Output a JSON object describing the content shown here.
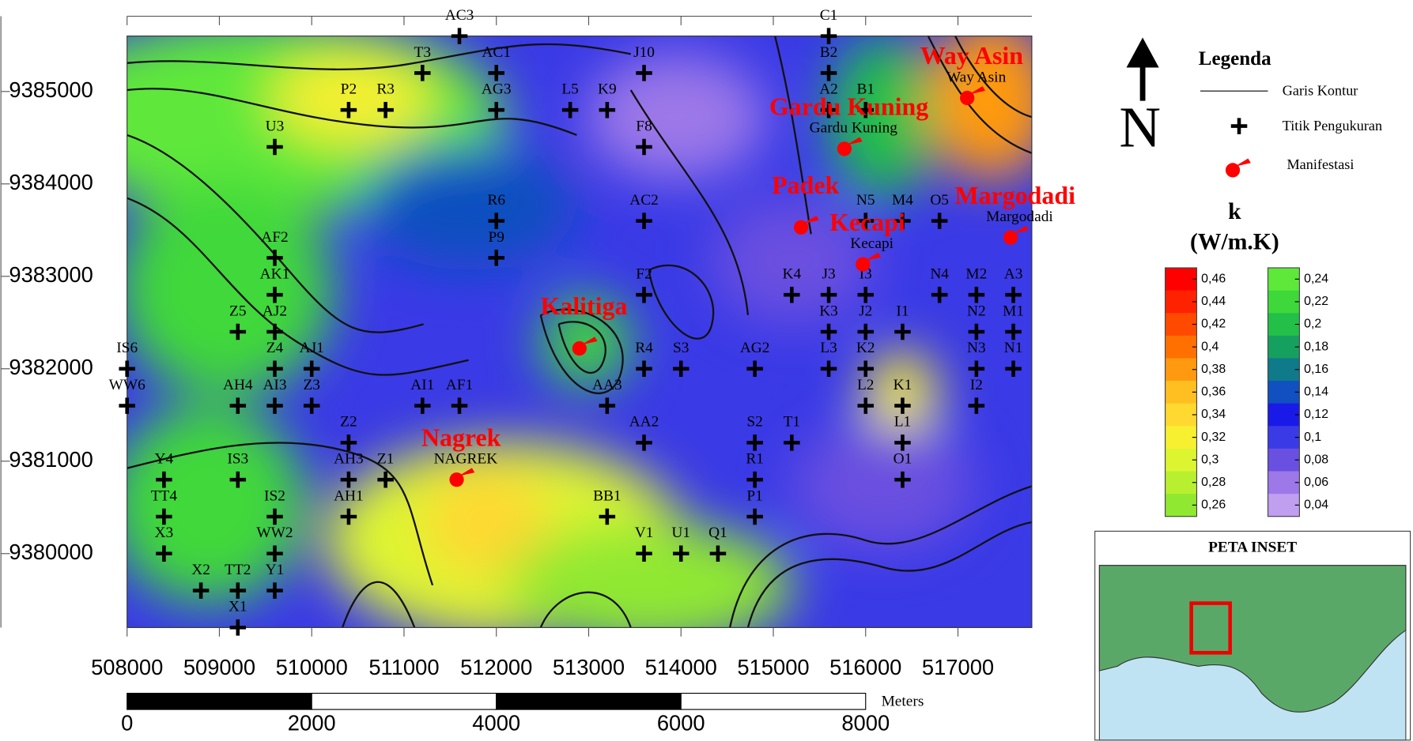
{
  "map": {
    "xlim": [
      508000,
      517800
    ],
    "ylim": [
      9379200,
      9385600
    ],
    "xticks": [
      508000,
      509000,
      510000,
      511000,
      512000,
      513000,
      514000,
      515000,
      516000,
      517000
    ],
    "yticks": [
      9380000,
      9381000,
      9382000,
      9383000,
      9384000,
      9385000
    ],
    "points": [
      {
        "label": "AC3",
        "x": 511600,
        "y": 9385600
      },
      {
        "label": "C1",
        "x": 515600,
        "y": 9385600
      },
      {
        "label": "T3",
        "x": 511200,
        "y": 9385200
      },
      {
        "label": "AC1",
        "x": 512000,
        "y": 9385200
      },
      {
        "label": "J10",
        "x": 513600,
        "y": 9385200
      },
      {
        "label": "B2",
        "x": 515600,
        "y": 9385200
      },
      {
        "label": "P2",
        "x": 510400,
        "y": 9384800
      },
      {
        "label": "R3",
        "x": 510800,
        "y": 9384800
      },
      {
        "label": "AG3",
        "x": 512000,
        "y": 9384800
      },
      {
        "label": "L5",
        "x": 512800,
        "y": 9384800
      },
      {
        "label": "K9",
        "x": 513200,
        "y": 9384800
      },
      {
        "label": "A2",
        "x": 515600,
        "y": 9384800
      },
      {
        "label": "B1",
        "x": 516000,
        "y": 9384800
      },
      {
        "label": "U3",
        "x": 509600,
        "y": 9384400
      },
      {
        "label": "F8",
        "x": 513600,
        "y": 9384400
      },
      {
        "label": "R6",
        "x": 512000,
        "y": 9383600
      },
      {
        "label": "AC2",
        "x": 513600,
        "y": 9383600
      },
      {
        "label": "N5",
        "x": 516000,
        "y": 9383600
      },
      {
        "label": "M4",
        "x": 516400,
        "y": 9383600
      },
      {
        "label": "O5",
        "x": 516800,
        "y": 9383600
      },
      {
        "label": "AF2",
        "x": 509600,
        "y": 9383200
      },
      {
        "label": "P9",
        "x": 512000,
        "y": 9383200
      },
      {
        "label": "AK1",
        "x": 509600,
        "y": 9382800
      },
      {
        "label": "F2",
        "x": 513600,
        "y": 9382800
      },
      {
        "label": "K4",
        "x": 515200,
        "y": 9382800
      },
      {
        "label": "J3",
        "x": 515600,
        "y": 9382800
      },
      {
        "label": "I3",
        "x": 516000,
        "y": 9382800
      },
      {
        "label": "N4",
        "x": 516800,
        "y": 9382800
      },
      {
        "label": "M2",
        "x": 517200,
        "y": 9382800
      },
      {
        "label": "A3",
        "x": 517600,
        "y": 9382800
      },
      {
        "label": "Z5",
        "x": 509200,
        "y": 9382400
      },
      {
        "label": "AJ2",
        "x": 509600,
        "y": 9382400
      },
      {
        "label": "K3",
        "x": 515600,
        "y": 9382400
      },
      {
        "label": "J2",
        "x": 516000,
        "y": 9382400
      },
      {
        "label": "I1",
        "x": 516400,
        "y": 9382400
      },
      {
        "label": "N2",
        "x": 517200,
        "y": 9382400
      },
      {
        "label": "M1",
        "x": 517600,
        "y": 9382400
      },
      {
        "label": "IS6",
        "x": 508000,
        "y": 9382000
      },
      {
        "label": "Z4",
        "x": 509600,
        "y": 9382000
      },
      {
        "label": "AJ1",
        "x": 510000,
        "y": 9382000
      },
      {
        "label": "R4",
        "x": 513600,
        "y": 9382000
      },
      {
        "label": "S3",
        "x": 514000,
        "y": 9382000
      },
      {
        "label": "AG2",
        "x": 514800,
        "y": 9382000
      },
      {
        "label": "L3",
        "x": 515600,
        "y": 9382000
      },
      {
        "label": "K2",
        "x": 516000,
        "y": 9382000
      },
      {
        "label": "N3",
        "x": 517200,
        "y": 9382000
      },
      {
        "label": "N1",
        "x": 517600,
        "y": 9382000
      },
      {
        "label": "WW6",
        "x": 508000,
        "y": 9381600
      },
      {
        "label": "AH4",
        "x": 509200,
        "y": 9381600
      },
      {
        "label": "AI3",
        "x": 509600,
        "y": 9381600
      },
      {
        "label": "Z3",
        "x": 510000,
        "y": 9381600
      },
      {
        "label": "AI1",
        "x": 511200,
        "y": 9381600
      },
      {
        "label": "AF1",
        "x": 511600,
        "y": 9381600
      },
      {
        "label": "AA3",
        "x": 513200,
        "y": 9381600
      },
      {
        "label": "L2",
        "x": 516000,
        "y": 9381600
      },
      {
        "label": "K1",
        "x": 516400,
        "y": 9381600
      },
      {
        "label": "I2",
        "x": 517200,
        "y": 9381600
      },
      {
        "label": "Z2",
        "x": 510400,
        "y": 9381200
      },
      {
        "label": "AA2",
        "x": 513600,
        "y": 9381200
      },
      {
        "label": "S2",
        "x": 514800,
        "y": 9381200
      },
      {
        "label": "T1",
        "x": 515200,
        "y": 9381200
      },
      {
        "label": "L1",
        "x": 516400,
        "y": 9381200
      },
      {
        "label": "Y4",
        "x": 508400,
        "y": 9380800
      },
      {
        "label": "IS3",
        "x": 509200,
        "y": 9380800
      },
      {
        "label": "AH3",
        "x": 510400,
        "y": 9380800
      },
      {
        "label": "Z1",
        "x": 510800,
        "y": 9380800
      },
      {
        "label": "R1",
        "x": 514800,
        "y": 9380800
      },
      {
        "label": "O1",
        "x": 516400,
        "y": 9380800
      },
      {
        "label": "TT4",
        "x": 508400,
        "y": 9380400
      },
      {
        "label": "IS2",
        "x": 509600,
        "y": 9380400
      },
      {
        "label": "AH1",
        "x": 510400,
        "y": 9380400
      },
      {
        "label": "BB1",
        "x": 513200,
        "y": 9380400
      },
      {
        "label": "P1",
        "x": 514800,
        "y": 9380400
      },
      {
        "label": "X3",
        "x": 508400,
        "y": 9380000
      },
      {
        "label": "WW2",
        "x": 509600,
        "y": 9380000
      },
      {
        "label": "V1",
        "x": 513600,
        "y": 9380000
      },
      {
        "label": "U1",
        "x": 514000,
        "y": 9380000
      },
      {
        "label": "Q1",
        "x": 514400,
        "y": 9380000
      },
      {
        "label": "X2",
        "x": 508800,
        "y": 9379600
      },
      {
        "label": "TT2",
        "x": 509200,
        "y": 9379600
      },
      {
        "label": "Y1",
        "x": 509600,
        "y": 9379600
      },
      {
        "label": "X1",
        "x": 509200,
        "y": 9379200
      }
    ],
    "manifestations": [
      {
        "name": "Way Asin",
        "label": "Way Asin",
        "x": 517100,
        "y": 9384930
      },
      {
        "name": "Gardu Kuning",
        "label": "Gardu Kuning",
        "x": 515770,
        "y": 9384380
      },
      {
        "name": "Padek",
        "x": 515300,
        "y": 9383530
      },
      {
        "name": "Kecapi",
        "label": "Kecapi",
        "x": 515970,
        "y": 9383130
      },
      {
        "name": "Margodadi",
        "label": "Margodadi",
        "x": 517570,
        "y": 9383420
      },
      {
        "name": "Kalitiga",
        "x": 512900,
        "y": 9382220
      },
      {
        "name": "Nagrek",
        "label": "NAGREK",
        "x": 511570,
        "y": 9380800
      }
    ]
  },
  "scale_bar": {
    "ticks": [
      0,
      2000,
      4000,
      6000,
      8000
    ],
    "unit": "Meters"
  },
  "legend": {
    "north": "N",
    "title": "Legenda",
    "items": [
      "Garis Kontur",
      "Titik Pengukuran",
      "Manifestasi"
    ]
  },
  "colorbar": {
    "title": "k",
    "unit": "(W/m.K)",
    "columns": [
      {
        "ticks": [
          {
            "value": 0.46,
            "label": "0,46"
          },
          {
            "value": 0.44,
            "label": "0,44"
          },
          {
            "value": 0.42,
            "label": "0,42"
          },
          {
            "value": 0.4,
            "label": "0,4"
          },
          {
            "value": 0.38,
            "label": "0,38"
          },
          {
            "value": 0.36,
            "label": "0,36"
          },
          {
            "value": 0.34,
            "label": "0,34"
          },
          {
            "value": 0.32,
            "label": "0,32"
          },
          {
            "value": 0.3,
            "label": "0,3"
          },
          {
            "value": 0.28,
            "label": "0,28"
          },
          {
            "value": 0.26,
            "label": "0,26"
          }
        ],
        "colors": [
          "#ff0000",
          "#ff2200",
          "#ff4a00",
          "#ff7000",
          "#ff9a10",
          "#ffbf20",
          "#ffd830",
          "#f7f030",
          "#ddf530",
          "#b8f030",
          "#90e830"
        ]
      },
      {
        "ticks": [
          {
            "value": 0.24,
            "label": "0,24"
          },
          {
            "value": 0.22,
            "label": "0,22"
          },
          {
            "value": 0.2,
            "label": "0,2"
          },
          {
            "value": 0.18,
            "label": "0,18"
          },
          {
            "value": 0.16,
            "label": "0,16"
          },
          {
            "value": 0.14,
            "label": "0,14"
          },
          {
            "value": 0.12,
            "label": "0,12"
          },
          {
            "value": 0.1,
            "label": "0,1"
          },
          {
            "value": 0.08,
            "label": "0,08"
          },
          {
            "value": 0.06,
            "label": "0,06"
          },
          {
            "value": 0.04,
            "label": "0,04"
          }
        ],
        "colors": [
          "#5ee83a",
          "#3fd83a",
          "#22c048",
          "#16a060",
          "#0e7a8a",
          "#1050c0",
          "#1a1ae8",
          "#3a3ae6",
          "#6a50e0",
          "#9c78e8",
          "#c09ef0"
        ]
      }
    ]
  },
  "inset": {
    "title": "PETA INSET"
  }
}
